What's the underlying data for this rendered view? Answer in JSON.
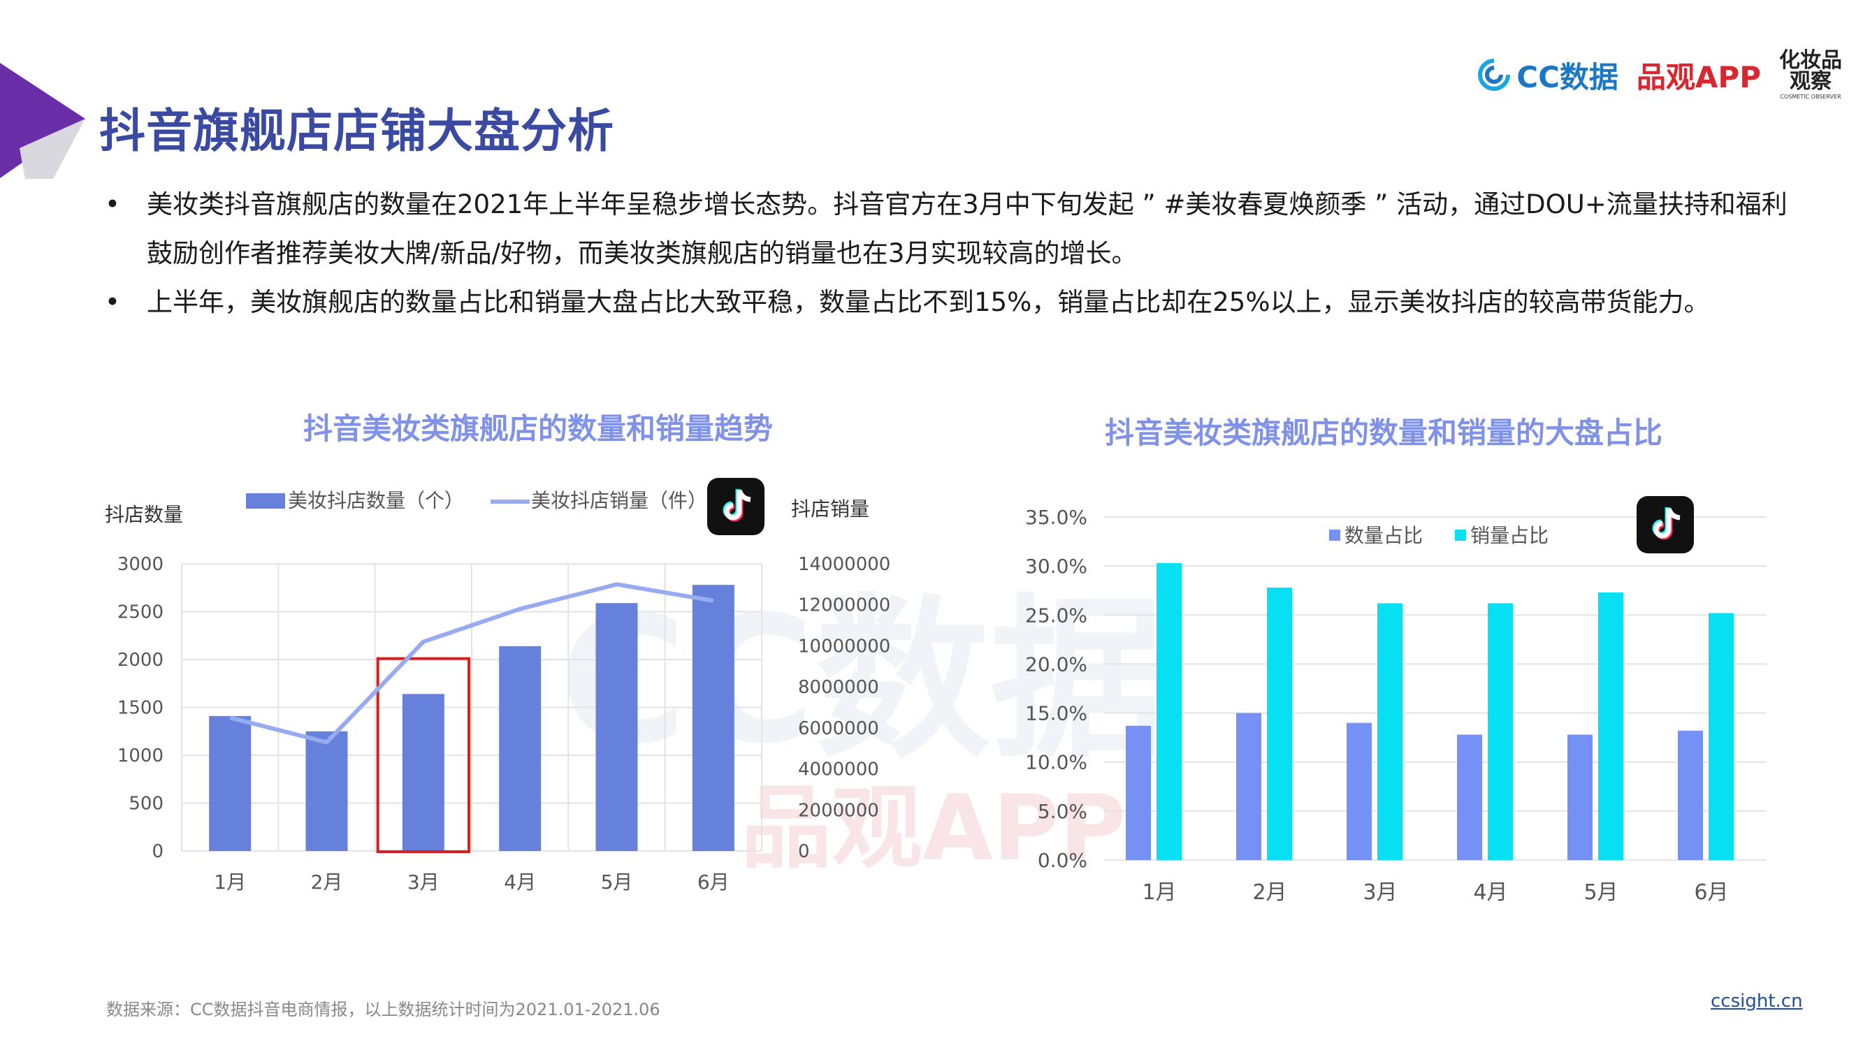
{
  "header": {
    "title": "抖音旗舰店店铺大盘分析",
    "logo_cc": "CC数据",
    "logo_pinguan": "品观APP",
    "logo_cosmetic_line1": "化妆品",
    "logo_cosmetic_line2": "观察",
    "logo_cosmetic_line3": "COSMETIC OBSERVER"
  },
  "bullets": [
    "美妆类抖音旗舰店的数量在2021年上半年呈稳步增长态势。抖音官方在3月中下旬发起 ” #美妆春夏焕颜季 ” 活动，通过DOU+流量扶持和福利鼓励创作者推荐美妆大牌/新品/好物，而美妆类旗舰店的销量也在3月实现较高的增长。",
    "上半年，美妆旗舰店的数量占比和销量大盘占比大致平稳，数量占比不到15%，销量占比却在25%以上，显示美妆抖店的较高带货能力。"
  ],
  "watermark": {
    "cc": "CC数据",
    "pinguan": "品观APP"
  },
  "chart_data": [
    {
      "type": "bar+line",
      "title": "抖音美妆类旗舰店的数量和销量趋势",
      "ylabel_left": "抖店数量",
      "ylabel_right": "抖店销量",
      "categories": [
        "1月",
        "2月",
        "3月",
        "4月",
        "5月",
        "6月"
      ],
      "series": [
        {
          "name": "美妆抖店数量（个）",
          "kind": "bar",
          "axis": "left",
          "values": [
            1410,
            1250,
            1640,
            2140,
            2590,
            2780
          ]
        },
        {
          "name": "美妆抖店销量（件）",
          "kind": "line",
          "axis": "right",
          "values": [
            6500000,
            5300000,
            10200000,
            11800000,
            13000000,
            12200000
          ]
        }
      ],
      "ylim_left": [
        0,
        3000
      ],
      "yticks_left": [
        "3000",
        "2500",
        "2000",
        "1500",
        "1000",
        "500",
        "0"
      ],
      "ylim_right": [
        0,
        14000000
      ],
      "yticks_right": [
        "14000000",
        "12000000",
        "10000000",
        "8000000",
        "6000000",
        "4000000",
        "2000000",
        "0"
      ],
      "highlight_category": "3月",
      "highlight_color": "#e01b1b",
      "colors": {
        "bar": "#6581dc",
        "line": "#98aaf0"
      },
      "legend_position": "top",
      "grid": true
    },
    {
      "type": "bar",
      "title": "抖音美妆类旗舰店的数量和销量的大盘占比",
      "categories": [
        "1月",
        "2月",
        "3月",
        "4月",
        "5月",
        "6月"
      ],
      "series": [
        {
          "name": "数量占比",
          "values": [
            13.7,
            15.0,
            14.0,
            12.8,
            12.8,
            13.2
          ],
          "color": "#7591f5"
        },
        {
          "name": "销量占比",
          "values": [
            30.3,
            27.8,
            26.2,
            26.2,
            27.3,
            25.2
          ],
          "color": "#06e0f2"
        }
      ],
      "ylim": [
        0,
        35
      ],
      "yticks": [
        "35.0%",
        "30.0%",
        "25.0%",
        "20.0%",
        "15.0%",
        "10.0%",
        "5.0%",
        "0.0%"
      ],
      "legend_position": "top",
      "grid": true
    }
  ],
  "footer": {
    "source": "数据来源：CC数据抖音电商情报，以上数据统计时间为2021.01-2021.06",
    "site": "ccsight.cn"
  }
}
